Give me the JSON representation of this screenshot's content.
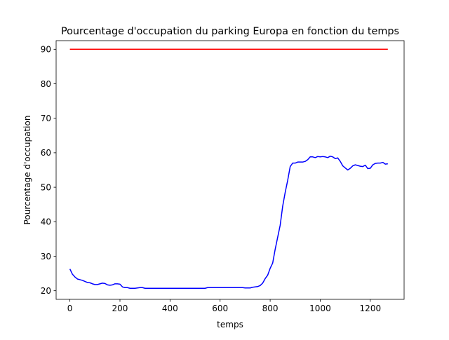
{
  "chart_data": {
    "type": "line",
    "title": "Pourcentage d'occupation du parking Europa en fonction du temps",
    "xlabel": "temps",
    "ylabel": "Pourcentage d'occupation",
    "xlim": [
      -55,
      1335
    ],
    "ylim": [
      17.5,
      92.5
    ],
    "xticks": [
      0,
      200,
      400,
      600,
      800,
      1000,
      1200
    ],
    "xtick_labels": [
      "0",
      "200",
      "400",
      "600",
      "800",
      "1000",
      "1200"
    ],
    "yticks": [
      20,
      30,
      40,
      50,
      60,
      70,
      80,
      90
    ],
    "ytick_labels": [
      "20",
      "30",
      "40",
      "50",
      "60",
      "70",
      "80",
      "90"
    ],
    "grid": false,
    "legend": false,
    "series": [
      {
        "color": "#ff0000",
        "x": [
          0,
          1270
        ],
        "y": [
          90,
          90
        ]
      },
      {
        "color": "#0000ff",
        "x": [
          0,
          10,
          20,
          30,
          40,
          50,
          60,
          70,
          80,
          90,
          100,
          110,
          120,
          130,
          140,
          150,
          160,
          170,
          180,
          190,
          200,
          210,
          220,
          230,
          240,
          250,
          260,
          270,
          280,
          290,
          300,
          350,
          400,
          450,
          500,
          540,
          550,
          600,
          650,
          690,
          700,
          720,
          730,
          740,
          750,
          760,
          770,
          780,
          790,
          800,
          810,
          820,
          830,
          840,
          850,
          860,
          870,
          880,
          890,
          900,
          910,
          920,
          930,
          940,
          950,
          960,
          970,
          980,
          990,
          1000,
          1010,
          1020,
          1030,
          1040,
          1050,
          1060,
          1070,
          1080,
          1090,
          1100,
          1110,
          1120,
          1130,
          1140,
          1150,
          1160,
          1170,
          1180,
          1190,
          1200,
          1210,
          1220,
          1230,
          1240,
          1250,
          1260,
          1270
        ],
        "y": [
          26.3,
          24.8,
          24.0,
          23.4,
          23.2,
          23.0,
          22.7,
          22.4,
          22.3,
          22.0,
          21.8,
          21.8,
          22.0,
          22.2,
          22.1,
          21.7,
          21.6,
          21.7,
          22.0,
          22.0,
          21.9,
          21.1,
          20.9,
          20.9,
          20.7,
          20.7,
          20.7,
          20.8,
          20.9,
          20.9,
          20.7,
          20.7,
          20.7,
          20.7,
          20.7,
          20.7,
          20.9,
          20.9,
          20.9,
          20.9,
          20.8,
          20.8,
          21.0,
          21.1,
          21.2,
          21.5,
          22.2,
          23.5,
          24.5,
          26.5,
          28.0,
          32.0,
          35.5,
          39.0,
          44.5,
          48.5,
          52.0,
          56.0,
          57.0,
          57.0,
          57.3,
          57.3,
          57.3,
          57.5,
          58.0,
          58.8,
          58.8,
          58.6,
          58.9,
          58.8,
          58.9,
          58.8,
          58.6,
          59.0,
          58.8,
          58.3,
          58.5,
          57.5,
          56.2,
          55.6,
          55.0,
          55.5,
          56.2,
          56.5,
          56.3,
          56.1,
          56.0,
          56.4,
          55.4,
          55.5,
          56.5,
          56.9,
          57.0,
          57.0,
          57.2,
          56.7,
          56.8
        ]
      }
    ]
  }
}
